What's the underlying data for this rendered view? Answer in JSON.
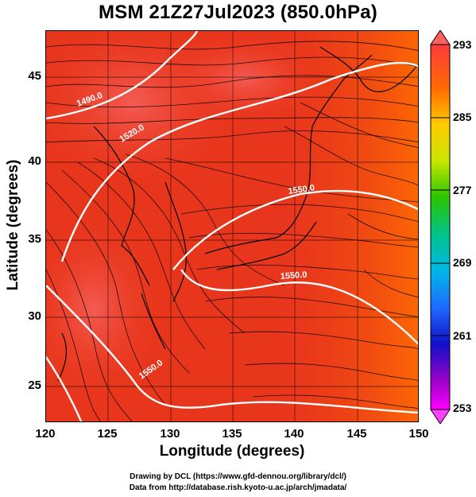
{
  "title": "MSM 21Z27Jul2023 (850.0hPa)",
  "xlabel": "Longitude (degrees)",
  "ylabel": "Latitude  (degrees)",
  "x_ticks": [
    "120",
    "125",
    "130",
    "135",
    "140",
    "145",
    "150"
  ],
  "y_ticks": [
    "45",
    "40",
    "35",
    "30",
    "25"
  ],
  "colorbar": {
    "labels": [
      "293",
      "285",
      "277",
      "269",
      "261",
      "253"
    ],
    "range": [
      253,
      293
    ]
  },
  "contour_labels": [
    "1490.0",
    "1520.0",
    "1550.0",
    "1550.0",
    "1550.0"
  ],
  "footer": {
    "line1": "Drawing by DCL (https://www.gfd-dennou.org/library/dcl/)",
    "line2": "Data from http://database.rish.kyoto-u.ac.jp/arch/jmadata/"
  },
  "map": {
    "lon_range": [
      120,
      150
    ],
    "lat_range": [
      22.5,
      47.8
    ],
    "field": "temperature (K)",
    "colors": {
      "warm": "#e8361c",
      "hot": "#f05a3c",
      "edge": "#ff7a00"
    }
  }
}
